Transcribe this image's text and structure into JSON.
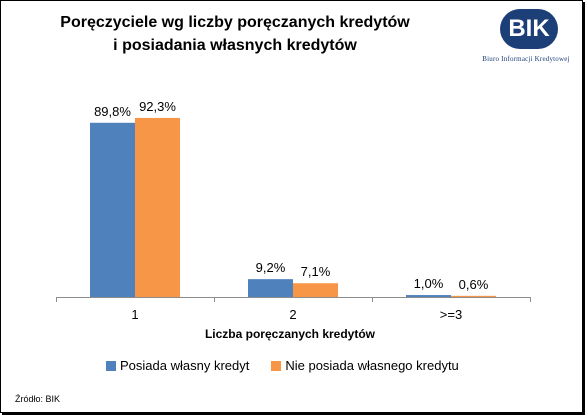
{
  "title_line1": "Poręczyciele wg liczby poręczanych kredytów",
  "title_line2": "i posiadania własnych kredytów",
  "logo": {
    "text": "BIK",
    "subtitle": "Biuro Informacji Kredytowej"
  },
  "source": "Źródło: BIK",
  "colors": {
    "series1": "#4f81bd",
    "series2": "#f79646",
    "brand": "#1d3f78"
  },
  "chart_data": {
    "type": "bar",
    "categories": [
      "1",
      "2",
      ">=3"
    ],
    "series": [
      {
        "name": "Posiada własny kredyt",
        "values": [
          89.8,
          9.2,
          1.0
        ],
        "labels": [
          "89,8%",
          "9,2%",
          "1,0%"
        ]
      },
      {
        "name": "Nie posiada własnego kredytu",
        "values": [
          92.3,
          7.1,
          0.6
        ],
        "labels": [
          "92,3%",
          "7,1%",
          "0,6%"
        ]
      }
    ],
    "xlabel": "Liczba poręczanych kredytów",
    "ylabel": "",
    "ylim": [
      0,
      100
    ],
    "grid": false,
    "legend": "bottom"
  }
}
